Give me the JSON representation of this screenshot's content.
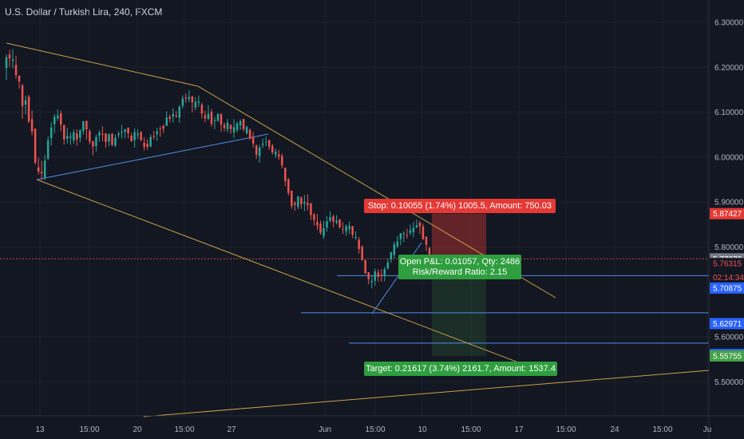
{
  "header": {
    "title": "U.S. Dollar / Turkish Lira, 240, FXCM"
  },
  "chart_data": {
    "type": "candlestick",
    "symbol": "USD/TRY",
    "interval": "240",
    "source": "FXCM",
    "y_axis_ticks": [
      "6.30000",
      "6.20000",
      "6.10000",
      "6.00000",
      "5.90000",
      "5.80000",
      "5.60000",
      "5.50000"
    ],
    "x_axis_ticks": [
      "13",
      "15:00",
      "20",
      "15:00",
      "27",
      "Jun",
      "15:00",
      "10",
      "15:00",
      "17",
      "15:00",
      "24",
      "15:00",
      "Ju"
    ],
    "ylim": [
      5.455,
      6.33
    ],
    "price_badges": [
      {
        "label": "5.87427",
        "bg": "#e53935",
        "fg": "#ffffff",
        "value": 5.87427
      },
      {
        "label": "5.77372",
        "bg": "#787b86",
        "fg": "#ffffff",
        "value": 5.77372
      },
      {
        "label": "5.76315",
        "bg": "#131722",
        "fg": "#ef5350",
        "value": 5.76315
      },
      {
        "label": "02:14:34",
        "bg": "#131722",
        "fg": "#ef5350",
        "value": 5.7325
      },
      {
        "label": "5.70875",
        "bg": "#2962ff",
        "fg": "#ffffff",
        "value": 5.70875
      },
      {
        "label": "5.62971",
        "bg": "#2962ff",
        "fg": "#ffffff",
        "value": 5.62971
      },
      {
        "label": "5.56101",
        "bg": "#2962ff",
        "fg": "#ffffff",
        "value": 5.56101
      },
      {
        "label": "5.55755",
        "bg": "#43a047",
        "fg": "#ffffff",
        "value": 5.55755
      }
    ],
    "horizontal_levels": [
      5.73625,
      5.65375,
      5.58625
    ],
    "current_price": 5.77372,
    "position": {
      "entry": 5.77372,
      "stop": 5.87427,
      "target": 5.55755,
      "stop_label": "Stop: 0.10055 (1.74%) 1005.5, Amount: 750.03",
      "open_pl_label": "Open P&L: 0.01057, Qty: 2486",
      "rr_label": "Risk/Reward Ratio: 2.15",
      "target_label": "Target: 0.21617 (3.74%) 2161.7, Amount: 1537.4"
    },
    "candles_ohlc": [
      [
        6.1982,
        6.2286,
        6.1718,
        6.2223
      ],
      [
        6.2283,
        6.2386,
        6.2014,
        6.2197
      ],
      [
        6.2146,
        6.2406,
        6.1978,
        6.2174
      ],
      [
        6.2053,
        6.2257,
        6.1742,
        6.1827
      ],
      [
        6.1808,
        6.1827,
        6.1526,
        6.1682
      ],
      [
        6.1597,
        6.1629,
        6.0857,
        6.1133
      ],
      [
        6.1171,
        6.1371,
        6.0958,
        6.1266
      ],
      [
        6.1349,
        6.1385,
        6.0758,
        6.0795
      ],
      [
        6.0844,
        6.1037,
        6.0484,
        6.0572
      ],
      [
        6.0637,
        6.0637,
        5.9835,
        5.9878
      ],
      [
        5.9771,
        5.9993,
        5.9614,
        5.9678
      ],
      [
        5.9675,
        5.9918,
        5.9487,
        5.9642
      ],
      [
        5.9545,
        6.0052,
        5.9486,
        5.9923
      ],
      [
        5.997,
        6.0463,
        5.9927,
        6.0375
      ],
      [
        6.0423,
        6.0778,
        6.026,
        6.0662
      ],
      [
        6.0731,
        6.0962,
        6.0539,
        6.0901
      ],
      [
        6.0864,
        6.1062,
        6.0807,
        6.0929
      ],
      [
        6.0975,
        6.1034,
        6.0578,
        6.0725
      ],
      [
        6.0715,
        6.0722,
        6.0281,
        6.0392
      ],
      [
        6.0408,
        6.0652,
        6.0301,
        6.0473
      ],
      [
        6.0429,
        6.0552,
        6.0272,
        6.0458
      ],
      [
        6.0375,
        6.0616,
        6.0298,
        6.0553
      ],
      [
        6.0529,
        6.0619,
        6.0255,
        6.0396
      ],
      [
        6.0432,
        6.0625,
        6.033,
        6.0597
      ],
      [
        6.0581,
        6.0806,
        6.0505,
        6.08
      ],
      [
        6.0807,
        6.0816,
        6.0396,
        6.062
      ],
      [
        6.0581,
        6.0622,
        6.0289,
        6.0346
      ],
      [
        6.0358,
        6.0358,
        6.0041,
        6.0237
      ],
      [
        6.0244,
        6.0503,
        6.0124,
        6.0447
      ],
      [
        6.0483,
        6.0599,
        6.0349,
        6.0547
      ],
      [
        6.0517,
        6.0684,
        6.0351,
        6.0502
      ],
      [
        6.0526,
        6.0537,
        6.0209,
        6.034
      ],
      [
        6.0348,
        6.053,
        6.0239,
        6.051
      ],
      [
        6.0521,
        6.0534,
        6.0243,
        6.0274
      ],
      [
        6.0258,
        6.0507,
        6.0224,
        6.0434
      ],
      [
        6.0493,
        6.0576,
        6.0426,
        6.0525
      ],
      [
        6.056,
        6.072,
        6.0419,
        6.0566
      ],
      [
        6.0561,
        6.0633,
        6.0419,
        6.0617
      ],
      [
        6.0655,
        6.0665,
        6.0419,
        6.0529
      ],
      [
        6.0477,
        6.0536,
        6.0342,
        6.0358
      ],
      [
        6.0382,
        6.0641,
        6.0211,
        6.0554
      ],
      [
        6.049,
        6.0618,
        6.0404,
        6.0521
      ],
      [
        6.0558,
        6.058,
        6.0356,
        6.0378
      ],
      [
        6.0319,
        6.0447,
        6.0147,
        6.0226
      ],
      [
        6.0301,
        6.0395,
        6.0164,
        6.0228
      ],
      [
        6.0235,
        6.0504,
        6.0226,
        6.0449
      ],
      [
        6.0466,
        6.0586,
        6.039,
        6.0451
      ],
      [
        6.0515,
        6.0654,
        6.0361,
        6.0573
      ],
      [
        6.064,
        6.0689,
        6.0456,
        6.0636
      ],
      [
        6.0695,
        6.072,
        6.0533,
        6.0634
      ],
      [
        6.0699,
        6.1021,
        6.0692,
        6.088
      ],
      [
        6.0899,
        6.095,
        6.0776,
        6.0853
      ],
      [
        6.0903,
        6.1087,
        6.0769,
        6.0963
      ],
      [
        6.0922,
        6.1026,
        6.0874,
        6.0914
      ],
      [
        6.088,
        6.1158,
        6.0763,
        6.1124
      ],
      [
        6.1143,
        6.1373,
        6.1084,
        6.1307
      ],
      [
        6.1326,
        6.1421,
        6.1211,
        6.1312
      ],
      [
        6.1291,
        6.1486,
        6.1221,
        6.134
      ],
      [
        6.1351,
        6.1369,
        6.0998,
        6.1223
      ],
      [
        6.1106,
        6.1337,
        6.1046,
        6.1234
      ],
      [
        6.1214,
        6.1372,
        6.1114,
        6.1242
      ],
      [
        6.1169,
        6.121,
        6.0859,
        6.0972
      ],
      [
        6.0933,
        6.1037,
        6.0774,
        6.0865
      ],
      [
        6.0852,
        6.1159,
        6.0822,
        6.0968
      ],
      [
        6.1006,
        6.1072,
        6.0676,
        6.0741
      ],
      [
        6.0801,
        6.0895,
        6.0623,
        6.0821
      ],
      [
        6.081,
        6.0977,
        6.0788,
        6.0963
      ],
      [
        6.0964,
        6.0972,
        6.0567,
        6.0725
      ],
      [
        6.0719,
        6.0769,
        6.0574,
        6.065
      ],
      [
        6.0622,
        6.0847,
        6.0554,
        6.0767
      ],
      [
        6.0717,
        6.073,
        6.0521,
        6.0624
      ],
      [
        6.0549,
        6.0848,
        6.0422,
        6.0668
      ],
      [
        6.0609,
        6.0792,
        6.0546,
        6.0751
      ],
      [
        6.0707,
        6.0843,
        6.0601,
        6.08
      ],
      [
        6.085,
        6.085,
        6.057,
        6.0622
      ],
      [
        6.0527,
        6.0705,
        6.0508,
        6.067
      ],
      [
        6.0606,
        6.064,
        6.038,
        6.0416
      ],
      [
        6.0446,
        6.0556,
        6.0211,
        6.0305
      ],
      [
        6.0256,
        6.0286,
        5.9958,
        6.0055
      ],
      [
        6.0025,
        6.0273,
        5.9874,
        6.0215
      ],
      [
        6.0273,
        6.0408,
        6.0203,
        6.0303
      ],
      [
        6.033,
        6.0453,
        6.0243,
        6.0338
      ],
      [
        6.0375,
        6.0392,
        6.0159,
        6.0232
      ],
      [
        6.0249,
        6.03,
        6.0059,
        6.0107
      ],
      [
        6.0056,
        6.0194,
        5.9985,
        6.0119
      ],
      [
        6.0058,
        6.0164,
        5.9944,
        6.0014
      ],
      [
        6.0029,
        6.0078,
        5.975,
        5.9813
      ],
      [
        5.9766,
        5.9766,
        5.9358,
        5.9471
      ],
      [
        5.9507,
        5.9533,
        5.9144,
        5.9201
      ],
      [
        5.9254,
        5.9254,
        5.8849,
        5.8914
      ],
      [
        5.898,
        5.9019,
        5.8805,
        5.8942
      ],
      [
        5.8894,
        5.9139,
        5.8842,
        5.9125
      ],
      [
        5.91,
        5.9123,
        5.8853,
        5.8953
      ],
      [
        5.8968,
        5.9158,
        5.8798,
        5.9006
      ],
      [
        5.898,
        5.9175,
        5.8814,
        5.893
      ],
      [
        5.8977,
        5.8977,
        5.8598,
        5.8713
      ],
      [
        5.8727,
        5.8753,
        5.8478,
        5.8604
      ],
      [
        5.8563,
        5.8735,
        5.8378,
        5.848
      ],
      [
        5.8522,
        5.8591,
        5.8274,
        5.8318
      ],
      [
        5.8245,
        5.8581,
        5.8183,
        5.8423
      ],
      [
        5.8431,
        5.8685,
        5.8339,
        5.8572
      ],
      [
        5.8582,
        5.8798,
        5.8547,
        5.8667
      ],
      [
        5.8679,
        5.8721,
        5.8436,
        5.8567
      ],
      [
        5.854,
        5.8711,
        5.8505,
        5.8582
      ],
      [
        5.8617,
        5.8617,
        5.8413,
        5.8441
      ],
      [
        5.8408,
        5.8551,
        5.8285,
        5.8401
      ],
      [
        5.8351,
        5.8503,
        5.8245,
        5.8466
      ],
      [
        5.8398,
        5.8566,
        5.8289,
        5.8473
      ],
      [
        5.8468,
        5.8468,
        5.8197,
        5.8275
      ],
      [
        5.8202,
        5.835,
        5.8156,
        5.8222
      ],
      [
        5.8161,
        5.8225,
        5.7857,
        5.7958
      ],
      [
        5.8005,
        5.8038,
        5.7698,
        5.7708
      ],
      [
        5.7713,
        5.7713,
        5.7401,
        5.7416
      ],
      [
        5.744,
        5.744,
        5.7175,
        5.7285
      ],
      [
        5.7216,
        5.7351,
        5.708,
        5.7245
      ],
      [
        5.7251,
        5.7522,
        5.7138,
        5.7458
      ],
      [
        5.743,
        5.7504,
        5.7231,
        5.7342
      ],
      [
        5.7377,
        5.7508,
        5.7226,
        5.7351
      ],
      [
        5.7361,
        5.756,
        5.7235,
        5.7505
      ],
      [
        5.7519,
        5.7744,
        5.75,
        5.7657
      ],
      [
        5.7718,
        5.7893,
        5.7645,
        5.7883
      ],
      [
        5.7819,
        5.8121,
        5.7746,
        5.8062
      ],
      [
        5.8015,
        5.8249,
        5.7976,
        5.8125
      ],
      [
        5.8174,
        5.8312,
        5.8042,
        5.8306
      ],
      [
        5.8291,
        5.835,
        5.8107,
        5.8309
      ],
      [
        5.827,
        5.8409,
        5.8185,
        5.8266
      ],
      [
        5.8316,
        5.8498,
        5.826,
        5.8376
      ],
      [
        5.8325,
        5.8557,
        5.8211,
        5.8429
      ],
      [
        5.8439,
        5.8616,
        5.8417,
        5.8487
      ],
      [
        5.8542,
        5.8583,
        5.8287,
        5.8458
      ],
      [
        5.8455,
        5.8521,
        5.8164,
        5.8174
      ],
      [
        5.8234,
        5.8234,
        5.7909,
        5.8048
      ],
      [
        5.7978,
        5.8004,
        5.7701,
        5.778
      ]
    ]
  }
}
